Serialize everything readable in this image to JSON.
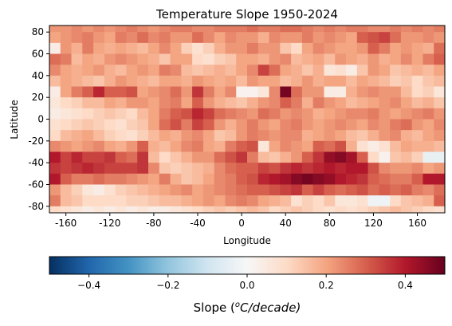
{
  "chart_data": {
    "type": "heatmap",
    "title": "Temperature Slope 1950-2024",
    "xlabel": "Longitude",
    "ylabel": "Latitude",
    "xlim": [
      -175,
      185
    ],
    "ylim": [
      -86,
      86
    ],
    "x_ticks": [
      -160,
      -120,
      -80,
      -40,
      0,
      40,
      80,
      120,
      160
    ],
    "y_ticks": [
      -80,
      -60,
      -40,
      -20,
      0,
      20,
      40,
      60,
      80
    ],
    "cell_size_deg": 10,
    "lon_centers": [
      -170,
      -160,
      -150,
      -140,
      -130,
      -120,
      -110,
      -100,
      -90,
      -80,
      -70,
      -60,
      -50,
      -40,
      -30,
      -20,
      -10,
      0,
      10,
      20,
      30,
      40,
      50,
      60,
      70,
      80,
      90,
      100,
      110,
      120,
      130,
      140,
      150,
      160,
      170,
      180
    ],
    "lat_centers": [
      85,
      75,
      65,
      55,
      45,
      35,
      25,
      15,
      5,
      -5,
      -15,
      -25,
      -35,
      -45,
      -55,
      -65,
      -75,
      -85
    ],
    "values": [
      [
        0.22,
        0.22,
        0.24,
        0.22,
        0.24,
        0.22,
        0.24,
        0.26,
        0.24,
        0.22,
        0.24,
        0.26,
        0.26,
        0.24,
        0.24,
        0.26,
        0.26,
        0.26,
        0.28,
        0.26,
        0.26,
        0.28,
        0.28,
        0.26,
        0.24,
        0.26,
        0.24,
        0.26,
        0.26,
        0.24,
        0.24,
        0.26,
        0.24,
        0.26,
        0.24,
        0.26
      ],
      [
        0.2,
        0.22,
        0.24,
        0.26,
        0.22,
        0.2,
        0.26,
        0.24,
        0.28,
        0.24,
        0.26,
        0.22,
        0.22,
        0.28,
        0.24,
        0.2,
        0.24,
        0.22,
        0.22,
        0.18,
        0.24,
        0.22,
        0.22,
        0.26,
        0.22,
        0.24,
        0.22,
        0.2,
        0.3,
        0.32,
        0.34,
        0.28,
        0.22,
        0.22,
        0.24,
        0.22
      ],
      [
        0.04,
        0.22,
        0.18,
        0.26,
        0.2,
        0.18,
        0.2,
        0.18,
        0.16,
        0.2,
        0.24,
        0.2,
        0.12,
        0.08,
        0.12,
        0.18,
        0.22,
        0.22,
        0.26,
        0.22,
        0.22,
        0.14,
        0.1,
        0.2,
        0.24,
        0.22,
        0.2,
        0.2,
        0.22,
        0.3,
        0.26,
        0.2,
        0.22,
        0.2,
        0.18,
        0.28
      ],
      [
        0.28,
        0.26,
        0.16,
        0.2,
        0.18,
        0.22,
        0.24,
        0.22,
        0.2,
        0.18,
        0.14,
        0.2,
        0.2,
        0.1,
        0.08,
        0.12,
        0.14,
        0.2,
        0.2,
        0.18,
        0.22,
        0.24,
        0.16,
        0.18,
        0.2,
        0.16,
        0.22,
        0.2,
        0.18,
        0.22,
        0.18,
        0.2,
        0.24,
        0.2,
        0.26,
        0.3
      ],
      [
        0.24,
        0.2,
        0.18,
        0.2,
        0.22,
        0.18,
        0.16,
        0.2,
        0.22,
        0.2,
        0.26,
        0.24,
        0.16,
        0.14,
        0.16,
        0.18,
        0.16,
        0.2,
        0.24,
        0.34,
        0.28,
        0.2,
        0.18,
        0.14,
        0.18,
        0.06,
        0.08,
        0.04,
        0.14,
        0.22,
        0.2,
        0.14,
        0.16,
        0.18,
        0.16,
        0.2
      ],
      [
        0.16,
        0.2,
        0.18,
        0.16,
        0.14,
        0.18,
        0.22,
        0.2,
        0.18,
        0.16,
        0.2,
        0.2,
        0.18,
        0.22,
        0.2,
        0.18,
        0.2,
        0.16,
        0.22,
        0.2,
        0.2,
        0.16,
        0.18,
        0.22,
        0.18,
        0.2,
        0.2,
        0.16,
        0.2,
        0.18,
        0.16,
        0.12,
        0.14,
        0.1,
        0.14,
        0.16
      ],
      [
        0.04,
        0.2,
        0.26,
        0.3,
        0.38,
        0.3,
        0.3,
        0.32,
        0.2,
        0.22,
        0.24,
        0.28,
        0.22,
        0.36,
        0.26,
        0.2,
        0.24,
        0.02,
        0.02,
        0.06,
        0.24,
        0.48,
        0.28,
        0.22,
        0.22,
        0.04,
        0.04,
        0.18,
        0.22,
        0.24,
        0.22,
        0.22,
        0.16,
        0.1,
        0.12,
        0.06
      ],
      [
        0.06,
        0.1,
        0.12,
        0.16,
        0.16,
        0.2,
        0.18,
        0.22,
        0.22,
        0.2,
        0.24,
        0.26,
        0.2,
        0.3,
        0.22,
        0.18,
        0.16,
        0.14,
        0.18,
        0.22,
        0.24,
        0.3,
        0.26,
        0.18,
        0.26,
        0.22,
        0.2,
        0.16,
        0.18,
        0.2,
        0.22,
        0.24,
        0.2,
        0.16,
        0.18,
        0.14
      ],
      [
        0.04,
        0.06,
        0.08,
        0.1,
        0.12,
        0.14,
        0.12,
        0.1,
        0.16,
        0.2,
        0.26,
        0.3,
        0.32,
        0.38,
        0.34,
        0.28,
        0.26,
        0.24,
        0.22,
        0.28,
        0.26,
        0.22,
        0.24,
        0.22,
        0.18,
        0.2,
        0.22,
        0.24,
        0.24,
        0.26,
        0.22,
        0.2,
        0.22,
        0.24,
        0.26,
        0.22
      ],
      [
        0.08,
        0.1,
        0.12,
        0.14,
        0.12,
        0.1,
        0.08,
        0.12,
        0.14,
        0.2,
        0.28,
        0.32,
        0.26,
        0.34,
        0.3,
        0.22,
        0.18,
        0.22,
        0.26,
        0.22,
        0.2,
        0.24,
        0.26,
        0.22,
        0.2,
        0.22,
        0.24,
        0.22,
        0.2,
        0.24,
        0.22,
        0.26,
        0.28,
        0.22,
        0.2,
        0.24
      ],
      [
        0.1,
        0.16,
        0.18,
        0.2,
        0.16,
        0.12,
        0.1,
        0.08,
        0.12,
        0.16,
        0.2,
        0.18,
        0.22,
        0.24,
        0.2,
        0.14,
        0.16,
        0.22,
        0.26,
        0.24,
        0.22,
        0.24,
        0.24,
        0.18,
        0.2,
        0.22,
        0.2,
        0.16,
        0.14,
        0.18,
        0.22,
        0.24,
        0.18,
        0.16,
        0.2,
        0.22
      ],
      [
        0.24,
        0.22,
        0.2,
        0.22,
        0.24,
        0.2,
        0.18,
        0.22,
        0.3,
        0.18,
        0.16,
        0.2,
        0.24,
        0.26,
        0.2,
        0.18,
        0.26,
        0.3,
        0.32,
        0.06,
        0.2,
        0.24,
        0.22,
        0.2,
        0.3,
        0.28,
        0.32,
        0.18,
        0.08,
        0.04,
        0.08,
        0.16,
        0.2,
        0.18,
        0.18,
        0.16
      ],
      [
        0.4,
        0.34,
        0.38,
        0.34,
        0.34,
        0.36,
        0.3,
        0.28,
        0.36,
        0.16,
        0.1,
        0.14,
        0.18,
        0.22,
        0.22,
        0.28,
        0.32,
        0.36,
        0.26,
        0.16,
        0.14,
        0.18,
        0.22,
        0.3,
        0.36,
        0.44,
        0.46,
        0.42,
        0.3,
        0.1,
        0.02,
        0.14,
        0.16,
        0.12,
        -0.04,
        -0.04
      ],
      [
        0.36,
        0.34,
        0.36,
        0.38,
        0.36,
        0.34,
        0.34,
        0.34,
        0.36,
        0.24,
        0.14,
        0.12,
        0.14,
        0.16,
        0.18,
        0.24,
        0.28,
        0.3,
        0.3,
        0.34,
        0.32,
        0.36,
        0.38,
        0.36,
        0.38,
        0.4,
        0.38,
        0.4,
        0.4,
        0.32,
        0.24,
        0.22,
        0.22,
        0.24,
        0.2,
        0.22
      ],
      [
        0.4,
        0.3,
        0.26,
        0.26,
        0.28,
        0.26,
        0.26,
        0.24,
        0.22,
        0.2,
        0.26,
        0.18,
        0.14,
        0.16,
        0.2,
        0.24,
        0.26,
        0.3,
        0.32,
        0.38,
        0.4,
        0.42,
        0.46,
        0.48,
        0.46,
        0.44,
        0.4,
        0.38,
        0.36,
        0.3,
        0.28,
        0.26,
        0.26,
        0.3,
        0.4,
        0.4
      ],
      [
        0.22,
        0.16,
        0.12,
        0.06,
        0.04,
        0.08,
        0.12,
        0.14,
        0.16,
        0.18,
        0.2,
        0.22,
        0.24,
        0.2,
        0.22,
        0.24,
        0.26,
        0.28,
        0.3,
        0.3,
        0.32,
        0.34,
        0.36,
        0.3,
        0.34,
        0.3,
        0.28,
        0.3,
        0.32,
        0.28,
        0.3,
        0.28,
        0.3,
        0.26,
        0.24,
        0.28
      ],
      [
        0.26,
        0.16,
        0.14,
        0.1,
        0.1,
        0.1,
        0.1,
        0.12,
        0.12,
        0.14,
        0.16,
        0.16,
        0.18,
        0.2,
        0.22,
        0.2,
        0.24,
        0.26,
        0.24,
        0.2,
        0.18,
        0.16,
        0.08,
        0.12,
        0.1,
        0.14,
        0.06,
        0.06,
        0.08,
        -0.02,
        -0.02,
        0.1,
        0.14,
        0.16,
        0.18,
        0.3
      ],
      [
        0.1,
        0.08,
        0.06,
        0.04,
        0.06,
        0.04,
        0.06,
        0.04,
        0.06,
        0.04,
        0.04,
        0.06,
        0.08,
        0.1,
        0.12,
        0.14,
        0.12,
        0.14,
        0.16,
        0.14,
        0.1,
        0.12,
        0.14,
        0.12,
        0.1,
        0.08,
        0.1,
        0.08,
        0.1,
        0.12,
        0.14,
        0.16,
        0.14,
        0.12,
        0.1,
        0.08
      ]
    ],
    "colorbar": {
      "label_text": "Slope (",
      "label_superscript": "o",
      "label_unit": "C/decade)",
      "vmin": -0.5,
      "vmax": 0.5,
      "ticks": [
        -0.4,
        -0.2,
        0.0,
        0.2,
        0.4
      ],
      "tick_labels": [
        "−0.4",
        "−0.2",
        "0.0",
        "0.2",
        "0.4"
      ],
      "colormap": "RdBu_r",
      "stops": [
        "#053061",
        "#2166ac",
        "#4393c3",
        "#92c5de",
        "#d1e5f0",
        "#f7f7f7",
        "#fddbc7",
        "#f4a582",
        "#d6604d",
        "#b2182b",
        "#67001f"
      ]
    }
  }
}
